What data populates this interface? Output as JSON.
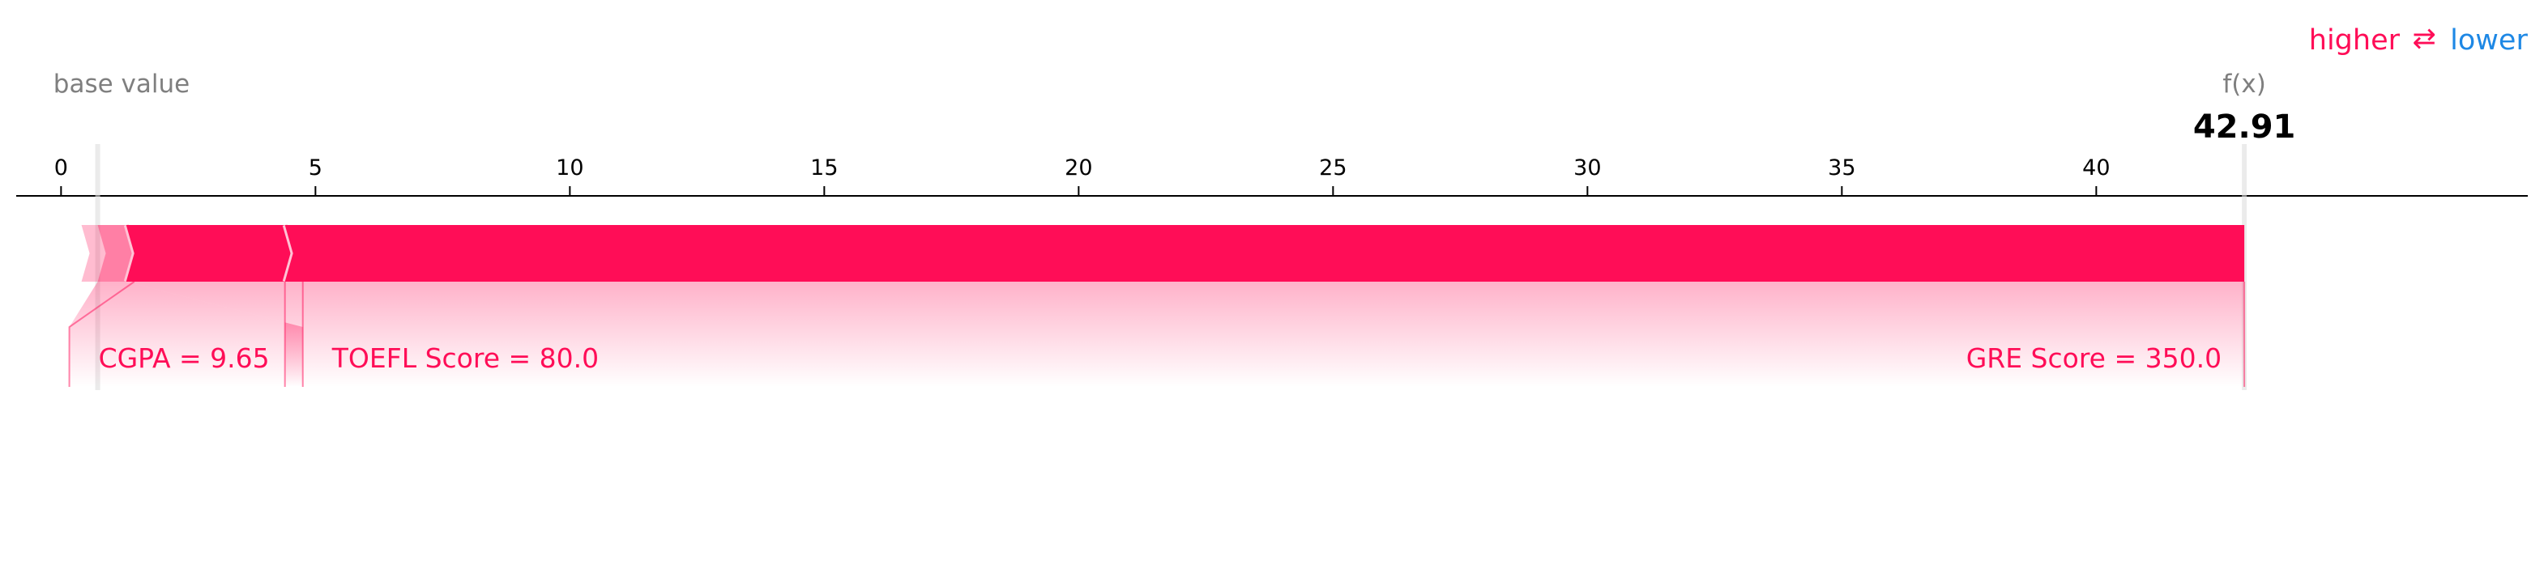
{
  "chart_data": {
    "type": "force",
    "base_value_label": "base value",
    "output_label": "f(x)",
    "output_value": 42.91,
    "output_value_text": "42.91",
    "base_value": 0.72,
    "xlim": [
      -1.2,
      48.8
    ],
    "ticks": [
      0,
      5,
      10,
      15,
      20,
      25,
      30,
      35,
      40
    ],
    "legend": {
      "higher": "higher",
      "arrow": "⇄",
      "lower": "lower"
    },
    "colors": {
      "positive": "#ff0d57",
      "negative": "#1e88e5",
      "muted": "#7f7f7f"
    },
    "features": [
      {
        "label": "CGPA = 9.65",
        "start": 0.72,
        "end": 1.28
      },
      {
        "label": "TOEFL Score = 80.0",
        "start": 1.28,
        "end": 4.4
      },
      {
        "label": "GRE Score = 350.0",
        "start": 4.4,
        "end": 42.91
      }
    ]
  }
}
